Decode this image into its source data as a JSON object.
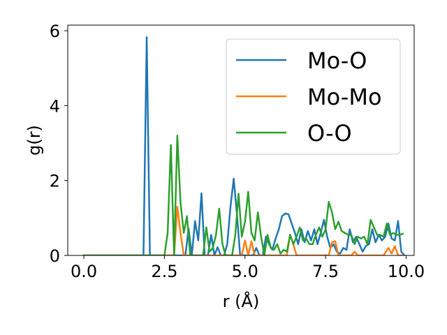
{
  "chart_data": {
    "type": "line",
    "xlabel": "r (Å)",
    "ylabel": "g(r)",
    "xlim": [
      -0.5,
      10.25
    ],
    "ylim": [
      0,
      6.15
    ],
    "xticks": [
      0.0,
      2.5,
      5.0,
      7.5,
      10.0
    ],
    "xtick_labels": [
      "0.0",
      "2.5",
      "5.0",
      "7.5",
      "10.0"
    ],
    "yticks": [
      0,
      2,
      4,
      6
    ],
    "ytick_labels": [
      "0",
      "2",
      "4",
      "6"
    ],
    "grid": false,
    "legend_position": "upper right",
    "series": [
      {
        "name": "Mo-O",
        "color": "#1f77b4",
        "points": [
          [
            0,
            0
          ],
          [
            1.85,
            0
          ],
          [
            1.95,
            5.83
          ],
          [
            2.05,
            0
          ],
          [
            2.15,
            0
          ],
          [
            3.15,
            0
          ],
          [
            3.25,
            0.72
          ],
          [
            3.35,
            0
          ],
          [
            3.45,
            0.92
          ],
          [
            3.55,
            0.4
          ],
          [
            3.65,
            1.66
          ],
          [
            3.75,
            0
          ],
          [
            3.85,
            0
          ],
          [
            3.95,
            0.55
          ],
          [
            4.05,
            0
          ],
          [
            4.15,
            0.22
          ],
          [
            4.25,
            0
          ],
          [
            4.35,
            0
          ],
          [
            4.45,
            0.3
          ],
          [
            4.55,
            1.3
          ],
          [
            4.65,
            2.05
          ],
          [
            4.75,
            1.1
          ],
          [
            4.85,
            0
          ],
          [
            4.95,
            0
          ],
          [
            5.05,
            0
          ],
          [
            5.15,
            0
          ],
          [
            5.25,
            0
          ],
          [
            5.35,
            0.2
          ],
          [
            5.45,
            0
          ],
          [
            5.55,
            0
          ],
          [
            5.65,
            0.5
          ],
          [
            5.75,
            0.3
          ],
          [
            5.85,
            0.15
          ],
          [
            5.95,
            0.45
          ],
          [
            6.05,
            0.7
          ],
          [
            6.15,
            1.05
          ],
          [
            6.25,
            1.12
          ],
          [
            6.35,
            1.1
          ],
          [
            6.45,
            0.85
          ],
          [
            6.55,
            0.6
          ],
          [
            6.65,
            0.3
          ],
          [
            6.75,
            0.7
          ],
          [
            6.85,
            0.35
          ],
          [
            6.95,
            0.65
          ],
          [
            7.05,
            0.4
          ],
          [
            7.15,
            0.7
          ],
          [
            7.25,
            0.3
          ],
          [
            7.35,
            0.6
          ],
          [
            7.45,
            0.95
          ],
          [
            7.55,
            0.5
          ],
          [
            7.65,
            0.2
          ],
          [
            7.75,
            0.3
          ],
          [
            7.85,
            0.1
          ],
          [
            7.95,
            0.05
          ],
          [
            8.05,
            0.2
          ],
          [
            8.15,
            0.15
          ],
          [
            8.25,
            0.7
          ],
          [
            8.35,
            0.35
          ],
          [
            8.45,
            0.5
          ],
          [
            8.55,
            0.3
          ],
          [
            8.65,
            0.1
          ],
          [
            8.75,
            0.25
          ],
          [
            8.85,
            0.3
          ],
          [
            8.95,
            0.7
          ],
          [
            9.05,
            0.35
          ],
          [
            9.15,
            0.55
          ],
          [
            9.25,
            0.4
          ],
          [
            9.35,
            0.5
          ],
          [
            9.45,
            0.85
          ],
          [
            9.55,
            0.45
          ],
          [
            9.65,
            0.4
          ],
          [
            9.75,
            0.92
          ],
          [
            9.85,
            0.1
          ],
          [
            9.95,
            0
          ]
        ]
      },
      {
        "name": "Mo-Mo",
        "color": "#ff7f0e",
        "points": [
          [
            0,
            0
          ],
          [
            2.8,
            0
          ],
          [
            2.9,
            1.3
          ],
          [
            3.0,
            0.6
          ],
          [
            3.1,
            0
          ],
          [
            4.9,
            0
          ],
          [
            5.0,
            0.4
          ],
          [
            5.1,
            0
          ],
          [
            5.2,
            0.38
          ],
          [
            5.3,
            0
          ],
          [
            6.3,
            0
          ],
          [
            6.4,
            0.55
          ],
          [
            6.5,
            0.3
          ],
          [
            6.6,
            0
          ],
          [
            7.6,
            0
          ],
          [
            7.7,
            0.35
          ],
          [
            7.8,
            0.38
          ],
          [
            7.9,
            0
          ],
          [
            8.3,
            0
          ],
          [
            8.4,
            0.1
          ],
          [
            8.5,
            0
          ],
          [
            9.3,
            0
          ],
          [
            9.45,
            0.2
          ],
          [
            9.55,
            0.05
          ],
          [
            9.65,
            0.25
          ],
          [
            9.75,
            0
          ],
          [
            9.85,
            0
          ]
        ]
      },
      {
        "name": "O-O",
        "color": "#2ca02c",
        "points": [
          [
            0,
            0
          ],
          [
            2.5,
            0
          ],
          [
            2.6,
            0.6
          ],
          [
            2.7,
            2.95
          ],
          [
            2.8,
            0
          ],
          [
            2.9,
            3.2
          ],
          [
            3.0,
            1.4
          ],
          [
            3.1,
            0.6
          ],
          [
            3.2,
            1.05
          ],
          [
            3.3,
            0
          ],
          [
            3.4,
            0
          ],
          [
            3.5,
            0
          ],
          [
            3.6,
            0
          ],
          [
            3.7,
            0
          ],
          [
            3.8,
            0.75
          ],
          [
            3.9,
            0.1
          ],
          [
            4.0,
            0.2
          ],
          [
            4.1,
            0.55
          ],
          [
            4.2,
            1.25
          ],
          [
            4.3,
            0.3
          ],
          [
            4.4,
            0
          ],
          [
            4.5,
            0
          ],
          [
            4.6,
            0
          ],
          [
            4.7,
            0.55
          ],
          [
            4.8,
            1.65
          ],
          [
            4.9,
            0.5
          ],
          [
            5.0,
            0.9
          ],
          [
            5.1,
            1.7
          ],
          [
            5.2,
            0.6
          ],
          [
            5.3,
            0.4
          ],
          [
            5.4,
            1.15
          ],
          [
            5.5,
            0.5
          ],
          [
            5.6,
            0
          ],
          [
            5.7,
            0.55
          ],
          [
            5.8,
            0.2
          ],
          [
            5.9,
            0.15
          ],
          [
            6.0,
            0.3
          ],
          [
            6.1,
            0.05
          ],
          [
            6.2,
            0.15
          ],
          [
            6.3,
            0.1
          ],
          [
            6.4,
            0.55
          ],
          [
            6.5,
            0.3
          ],
          [
            6.6,
            0.5
          ],
          [
            6.7,
            0.75
          ],
          [
            6.8,
            0.4
          ],
          [
            6.9,
            0.45
          ],
          [
            7.0,
            0.3
          ],
          [
            7.1,
            0.3
          ],
          [
            7.2,
            0.55
          ],
          [
            7.3,
            0.75
          ],
          [
            7.4,
            0.5
          ],
          [
            7.5,
            0.7
          ],
          [
            7.6,
            1.43
          ],
          [
            7.7,
            1.15
          ],
          [
            7.8,
            0.7
          ],
          [
            7.9,
            0.9
          ],
          [
            8.0,
            0.65
          ],
          [
            8.1,
            0.6
          ],
          [
            8.2,
            0.55
          ],
          [
            8.3,
            0.55
          ],
          [
            8.4,
            0.3
          ],
          [
            8.5,
            0.5
          ],
          [
            8.6,
            0.45
          ],
          [
            8.7,
            0.5
          ],
          [
            8.8,
            0.3
          ],
          [
            8.9,
            0.95
          ],
          [
            9.0,
            0.75
          ],
          [
            9.1,
            0.55
          ],
          [
            9.2,
            0.55
          ],
          [
            9.3,
            0.5
          ],
          [
            9.4,
            0.85
          ],
          [
            9.5,
            0.55
          ],
          [
            9.6,
            0.6
          ],
          [
            9.7,
            0.55
          ],
          [
            9.8,
            0.55
          ],
          [
            9.9,
            0.58
          ]
        ]
      }
    ]
  }
}
